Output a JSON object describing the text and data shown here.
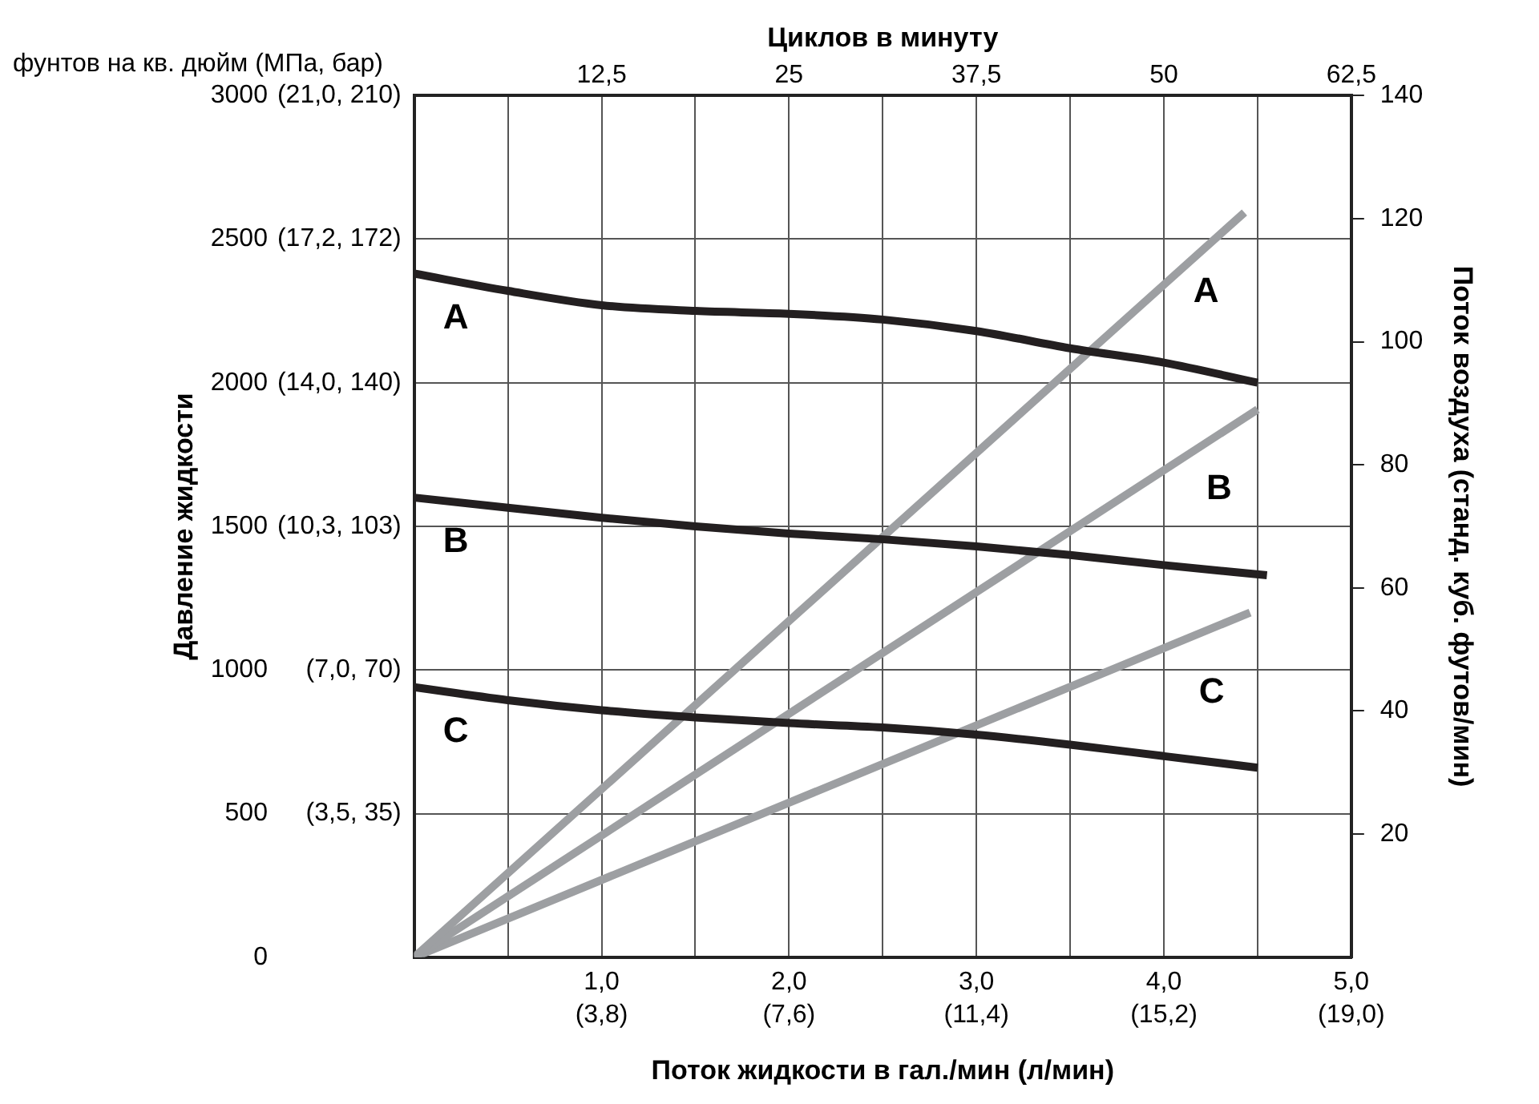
{
  "chart_data": {
    "type": "line",
    "xlabel": "Поток жидкости в гал./мин (л/мин)",
    "ylabel": "Давление жидкости",
    "y2label": "Поток воздуха (станд. куб. футов/мин)",
    "x2label": "Циклов в минуту",
    "annotations": [
      "фунтов на кв. дюйм (МПа, бар)",
      "(3,5, 35)",
      "(7,0, 70)",
      "(10,3, 103)",
      "(14,0, 140)",
      "(17,2, 172)",
      "(21,0, 210)",
      "(3,8)",
      "(7,6)",
      "(11,4)",
      "(15,2)",
      "(19,0)"
    ],
    "xlim": [
      0,
      5
    ],
    "xticks": [
      {
        "value": 0.5,
        "label": null
      },
      {
        "value": 1,
        "label": "1,0"
      },
      {
        "value": 1.5,
        "label": null
      },
      {
        "value": 2,
        "label": "2,0"
      },
      {
        "value": 2.5,
        "label": null
      },
      {
        "value": 3,
        "label": "3,0"
      },
      {
        "value": 3.5,
        "label": null
      },
      {
        "value": 4,
        "label": "4,0"
      },
      {
        "value": 4.5,
        "label": null
      },
      {
        "value": 5,
        "label": "5,0"
      }
    ],
    "x2lim": [
      0,
      62.5
    ],
    "x2ticks": [
      {
        "value": 12.5,
        "label": "12,5"
      },
      25,
      {
        "value": 37.5,
        "label": "37,5"
      },
      50,
      {
        "value": 62.5,
        "label": "62,5"
      }
    ],
    "ylim": [
      0,
      3000
    ],
    "yticks": [
      0,
      500,
      1000,
      1500,
      2000,
      2500,
      3000
    ],
    "y2lim": [
      0,
      140
    ],
    "y2ticks": [
      20,
      40,
      60,
      80,
      100,
      120,
      140
    ],
    "grid": true,
    "legend": false,
    "marker": "none",
    "line_style": "solid",
    "series": [
      {
        "name": "A",
        "color": "#231f20",
        "x": [
          0,
          0.5,
          1,
          1.5,
          2,
          2.5,
          3,
          3.5,
          4,
          4.5
        ],
        "values": [
          2380,
          2320,
          2270,
          2250,
          2240,
          2220,
          2180,
          2120,
          2070,
          2000
        ]
      },
      {
        "name": "B",
        "color": "#231f20",
        "x": [
          0,
          0.5,
          1,
          1.5,
          2,
          2.5,
          3,
          3.5,
          4,
          4.55
        ],
        "values": [
          1600,
          1565,
          1530,
          1500,
          1475,
          1455,
          1430,
          1400,
          1365,
          1330
        ]
      },
      {
        "name": "C",
        "color": "#231f20",
        "x": [
          0,
          0.5,
          1,
          1.5,
          2,
          2.5,
          3,
          3.5,
          4,
          4.5
        ],
        "values": [
          940,
          895,
          860,
          835,
          815,
          800,
          775,
          740,
          700,
          660
        ]
      },
      {
        "name": "A",
        "color": "#9d9fa2",
        "axis": "y2",
        "x": [
          0,
          4.43
        ],
        "values": [
          0,
          121
        ]
      },
      {
        "name": "B",
        "color": "#9d9fa2",
        "axis": "y2",
        "x": [
          0,
          4.5
        ],
        "values": [
          0,
          89
        ]
      },
      {
        "name": "C",
        "color": "#9d9fa2",
        "axis": "y2",
        "x": [
          0,
          4.46
        ],
        "values": [
          0,
          56
        ]
      }
    ]
  }
}
